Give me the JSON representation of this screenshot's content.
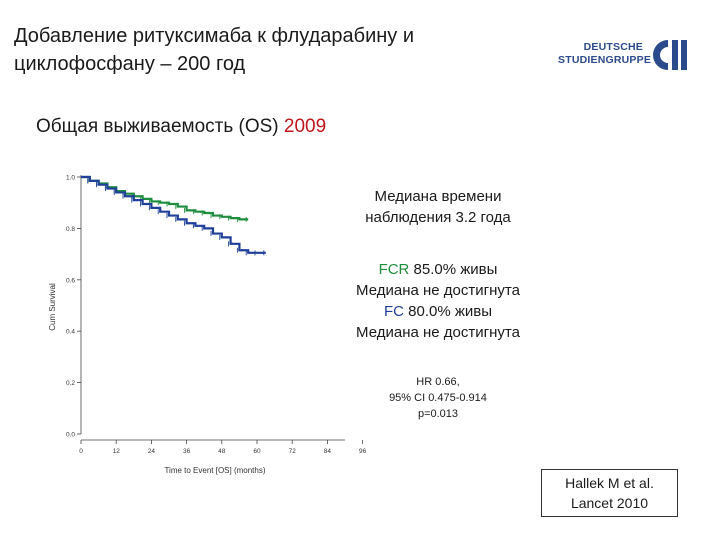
{
  "slide": {
    "title_line1": "Добавление ритуксимаба к флударабину и",
    "title_line2": "циклофосфану – 200 год",
    "subtitle_text": "Общая выживаемость (OS) ",
    "subtitle_year": "2009"
  },
  "logo": {
    "line1": "DEUTSCHE",
    "line2": "STUDIENGRUPPE",
    "mark": "CLL"
  },
  "annotations": {
    "median_line1": "Медиана времени",
    "median_line2": "наблюдения  3.2 года",
    "fcr_label": "FCR",
    "fcr_value": " 85.0% живы",
    "fcr_median": "Медиана не достигнута",
    "fc_label": "FC",
    "fc_value": " 80.0% живы",
    "fc_median": "Медиана не достигнута",
    "hr_line1": "HR 0.66,",
    "hr_line2": "95% CI 0.475-0.914",
    "hr_line3": "p=0.013"
  },
  "reference": {
    "line1": "Hallek M et al.",
    "line2": "Lancet 2010"
  },
  "colors": {
    "fcr": "#1e8e3e",
    "fc": "#1f3f99",
    "year": "#c0151b"
  },
  "chart_data": {
    "type": "line",
    "xlabel": "Time to Event [OS] (months)",
    "ylabel": "Cum Survival",
    "xlim": [
      0,
      90
    ],
    "ylim": [
      0,
      1.0
    ],
    "x_ticks": [
      "0",
      "12",
      "24",
      "36",
      "48",
      "60",
      "72",
      "84",
      "96"
    ],
    "y_ticks": [
      "1.0",
      "0.8",
      "0.6",
      "0.4",
      "0.2",
      "0.0"
    ],
    "grid": false,
    "series": [
      {
        "name": "FCR",
        "color": "#1e8e3e",
        "x": [
          0,
          3,
          6,
          9,
          12,
          15,
          18,
          21,
          24,
          27,
          30,
          33,
          36,
          39,
          42,
          45,
          48,
          51,
          54,
          57
        ],
        "y": [
          1.0,
          0.985,
          0.975,
          0.96,
          0.945,
          0.935,
          0.925,
          0.915,
          0.905,
          0.9,
          0.895,
          0.885,
          0.87,
          0.865,
          0.86,
          0.85,
          0.845,
          0.84,
          0.835,
          0.835
        ]
      },
      {
        "name": "FC",
        "color": "#1f3f99",
        "x": [
          0,
          3,
          6,
          9,
          12,
          15,
          18,
          21,
          24,
          27,
          30,
          33,
          36,
          39,
          42,
          45,
          48,
          51,
          54,
          57,
          60,
          63
        ],
        "y": [
          1.0,
          0.985,
          0.97,
          0.955,
          0.94,
          0.925,
          0.91,
          0.895,
          0.88,
          0.865,
          0.85,
          0.835,
          0.82,
          0.81,
          0.8,
          0.78,
          0.765,
          0.74,
          0.715,
          0.705,
          0.705,
          0.705
        ]
      }
    ]
  }
}
